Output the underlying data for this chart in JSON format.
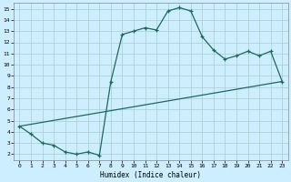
{
  "xlabel": "Humidex (Indice chaleur)",
  "bg_color": "#cceeff",
  "grid_color": "#aacccc",
  "line_color": "#1a6b5a",
  "xlim": [
    -0.5,
    23.5
  ],
  "ylim": [
    1.5,
    15.5
  ],
  "yticks": [
    2,
    3,
    4,
    5,
    6,
    7,
    8,
    9,
    10,
    11,
    12,
    13,
    14,
    15
  ],
  "xticks": [
    0,
    1,
    2,
    3,
    4,
    5,
    6,
    7,
    8,
    9,
    10,
    11,
    12,
    13,
    14,
    15,
    16,
    17,
    18,
    19,
    20,
    21,
    22,
    23
  ],
  "series1_x": [
    0,
    1,
    2,
    3,
    4,
    5,
    6,
    7,
    8,
    9,
    10,
    11,
    12,
    13,
    14,
    15,
    16,
    17,
    18,
    19,
    20,
    21,
    22,
    23
  ],
  "series1_y": [
    4.5,
    3.8,
    3.0,
    2.8,
    2.2,
    2.0,
    2.2,
    1.9,
    8.5,
    12.7,
    13.0,
    13.3,
    13.1,
    14.8,
    15.1,
    14.8,
    12.5,
    11.3,
    10.5,
    10.8,
    11.2,
    10.8,
    11.2,
    8.5
  ],
  "series2_x": [
    0,
    23
  ],
  "series2_y": [
    4.5,
    8.5
  ]
}
